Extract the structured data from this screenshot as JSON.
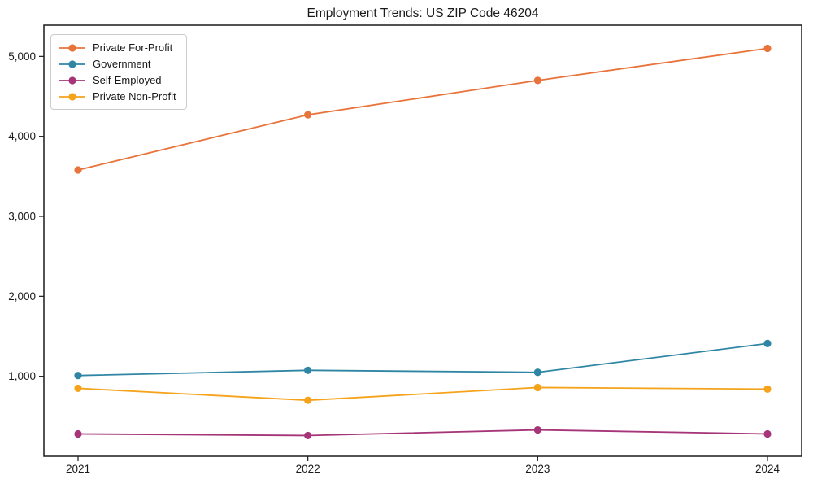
{
  "title": "Employment Trends: US ZIP Code 46204",
  "chart_data": {
    "type": "line",
    "title": "Employment Trends: US ZIP Code 46204",
    "xlabel": "",
    "ylabel": "",
    "x": [
      2021,
      2022,
      2023,
      2024
    ],
    "x_tick_labels": [
      "2021",
      "2022",
      "2023",
      "2024"
    ],
    "series": [
      {
        "name": "Private For-Profit",
        "color": "#e8743b",
        "values": [
          3580,
          4270,
          4700,
          5100
        ]
      },
      {
        "name": "Government",
        "color": "#2f86a4",
        "values": [
          1010,
          1075,
          1050,
          1410
        ]
      },
      {
        "name": "Self-Employed",
        "color": "#a53578",
        "values": [
          280,
          260,
          330,
          280
        ]
      },
      {
        "name": "Private Non-Profit",
        "color": "#f5a31b",
        "values": [
          850,
          700,
          860,
          840
        ]
      }
    ],
    "ylim": [
      0,
      5390
    ],
    "yticks": [
      1000,
      2000,
      3000,
      4000,
      5000
    ],
    "ytick_labels": [
      "1,000",
      "2,000",
      "3,000",
      "4,000",
      "5,000"
    ],
    "grid": false,
    "legend_position": "upper left",
    "marker": "circle",
    "axis_color": "#1a1a1a",
    "legend_border_color": "#cccccc"
  }
}
